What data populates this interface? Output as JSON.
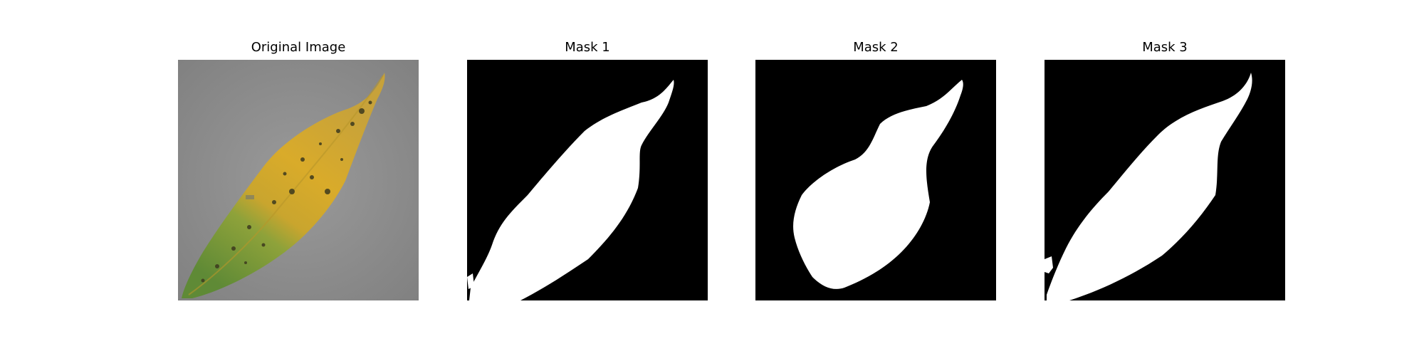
{
  "panels": [
    {
      "title": "Original Image",
      "kind": "photo"
    },
    {
      "title": "Mask 1",
      "kind": "mask"
    },
    {
      "title": "Mask 2",
      "kind": "mask"
    },
    {
      "title": "Mask 3",
      "kind": "mask"
    }
  ],
  "colors": {
    "background": "#ffffff",
    "mask_background": "#000000",
    "mask_foreground": "#ffffff",
    "surface_gray": "#8e8e8e",
    "leaf_yellow": "#d8a92a",
    "leaf_green": "#6f9a3a",
    "spot_dark": "#3d3a1e"
  }
}
